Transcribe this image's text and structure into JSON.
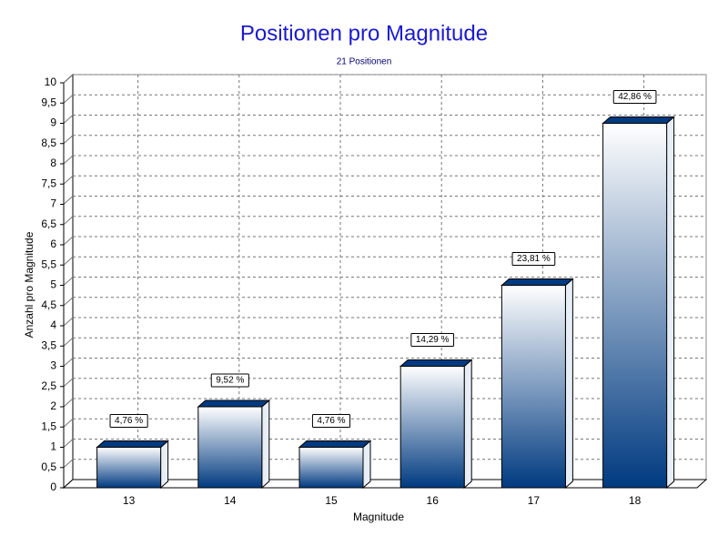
{
  "chart_data": {
    "type": "bar3d",
    "title": "Positionen pro Magnitude",
    "subtitle": "21 Positionen",
    "x_label": "Magnitude",
    "y_label": "Anzahl pro Magnitude",
    "categories": [
      "13",
      "14",
      "15",
      "16",
      "17",
      "18"
    ],
    "values": [
      1,
      2,
      1,
      3,
      5,
      9
    ],
    "value_labels": [
      "4,76 %",
      "9,52 %",
      "4,76 %",
      "14,29 %",
      "23,81 %",
      "42,86 %"
    ],
    "color": "#003a80",
    "ylim": [
      0,
      10
    ],
    "yticks": [
      0,
      {
        "value": 0.5,
        "label": "0,5"
      },
      1,
      {
        "value": 1.5,
        "label": "1,5"
      },
      2,
      {
        "value": 2.5,
        "label": "2,5"
      },
      3,
      {
        "value": 3.5,
        "label": "3,5"
      },
      4,
      {
        "value": 4.5,
        "label": "4,5"
      },
      5,
      {
        "value": 5.5,
        "label": "5,5"
      },
      6,
      {
        "value": 6.5,
        "label": "6,5"
      },
      7,
      {
        "value": 7.5,
        "label": "7,5"
      },
      8,
      {
        "value": 8.5,
        "label": "8,5"
      },
      9,
      {
        "value": 9.5,
        "label": "9,5"
      },
      10
    ],
    "grid": true
  }
}
